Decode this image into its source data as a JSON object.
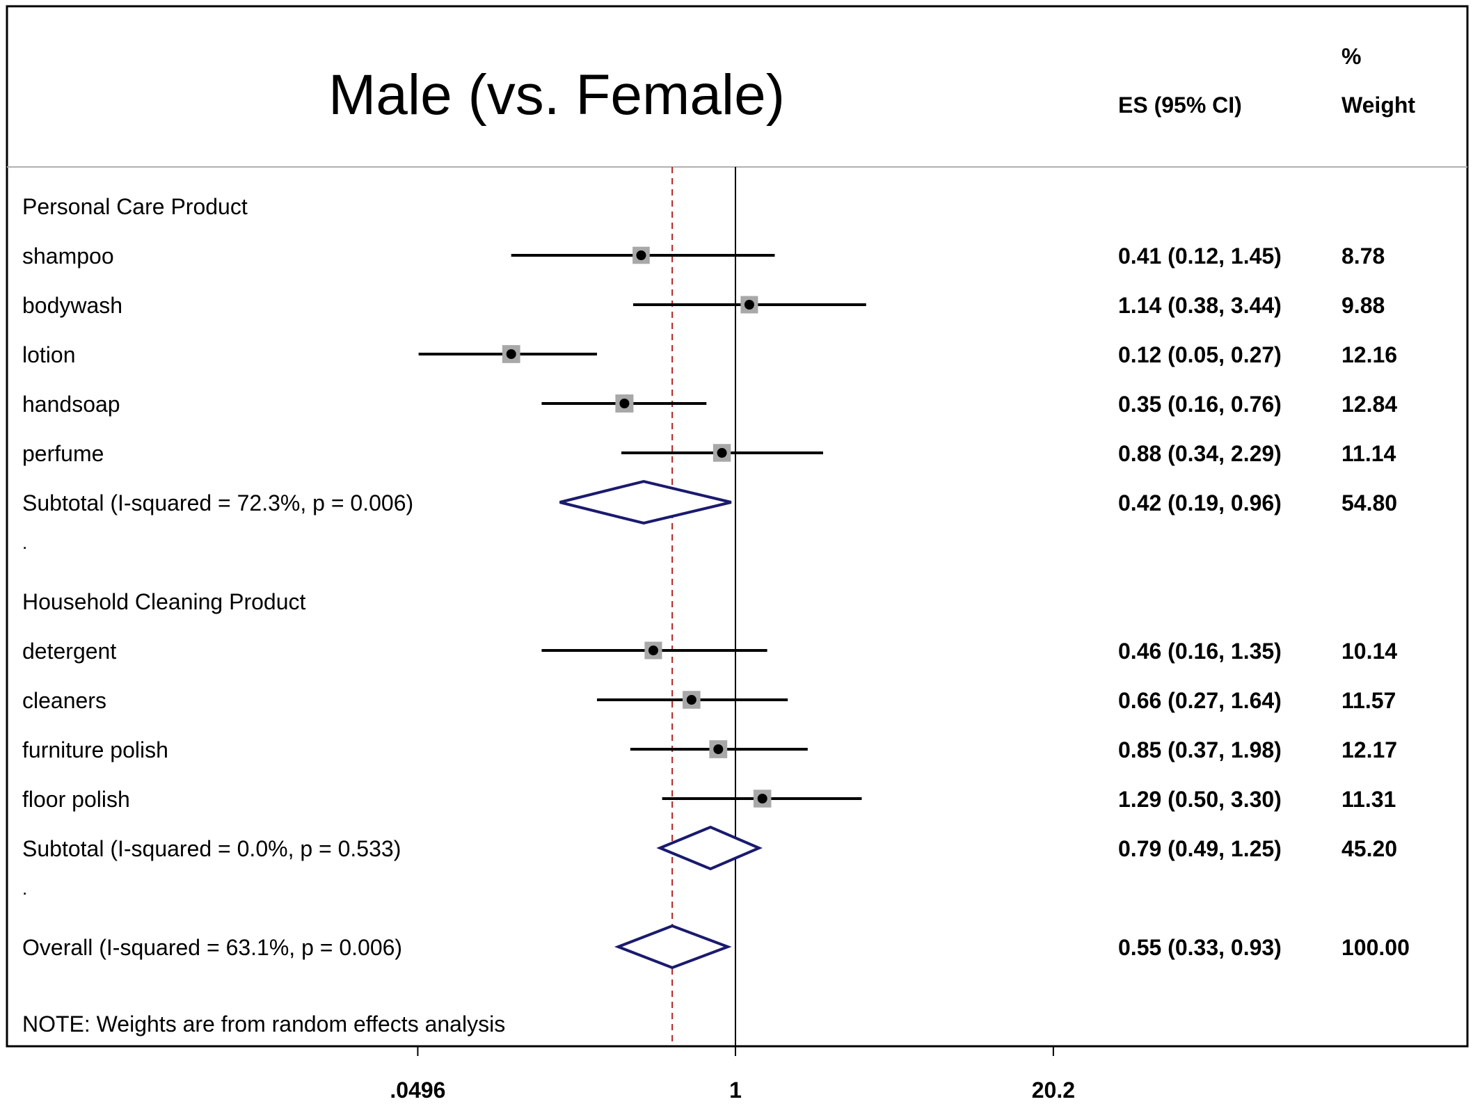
{
  "chart_data": {
    "type": "forest",
    "title": "Male (vs. Female)",
    "column_headers": {
      "es": "ES (95% CI)",
      "weight_top": "%",
      "weight_bottom": "Weight"
    },
    "x_scale": "log",
    "x_ticks": [
      {
        "value": 0.0496,
        "label": ".0496"
      },
      {
        "value": 1,
        "label": "1"
      },
      {
        "value": 20.2,
        "label": "20.2"
      }
    ],
    "null_line": 1,
    "overall_line": 0.55,
    "rows": [
      {
        "kind": "group",
        "label": "Personal Care Product"
      },
      {
        "kind": "study",
        "label": "shampoo",
        "es": 0.41,
        "lo": 0.12,
        "hi": 1.45,
        "es_text": "0.41 (0.12, 1.45)",
        "weight": 8.78,
        "weight_text": "8.78"
      },
      {
        "kind": "study",
        "label": "bodywash",
        "es": 1.14,
        "lo": 0.38,
        "hi": 3.44,
        "es_text": "1.14 (0.38, 3.44)",
        "weight": 9.88,
        "weight_text": "9.88"
      },
      {
        "kind": "study",
        "label": "lotion",
        "es": 0.12,
        "lo": 0.05,
        "hi": 0.27,
        "es_text": "0.12 (0.05, 0.27)",
        "weight": 12.16,
        "weight_text": "12.16"
      },
      {
        "kind": "study",
        "label": "handsoap",
        "es": 0.35,
        "lo": 0.16,
        "hi": 0.76,
        "es_text": "0.35 (0.16, 0.76)",
        "weight": 12.84,
        "weight_text": "12.84"
      },
      {
        "kind": "study",
        "label": "perfume",
        "es": 0.88,
        "lo": 0.34,
        "hi": 2.29,
        "es_text": "0.88 (0.34, 2.29)",
        "weight": 11.14,
        "weight_text": "11.14"
      },
      {
        "kind": "subtotal",
        "label": "Subtotal  (I-squared = 72.3%, p = 0.006)",
        "es": 0.42,
        "lo": 0.19,
        "hi": 0.96,
        "es_text": "0.42 (0.19, 0.96)",
        "weight": 54.8,
        "weight_text": "54.80"
      },
      {
        "kind": "spacer",
        "label": "."
      },
      {
        "kind": "group",
        "label": "Household Cleaning Product"
      },
      {
        "kind": "study",
        "label": "detergent",
        "es": 0.46,
        "lo": 0.16,
        "hi": 1.35,
        "es_text": "0.46 (0.16, 1.35)",
        "weight": 10.14,
        "weight_text": "10.14"
      },
      {
        "kind": "study",
        "label": "cleaners",
        "es": 0.66,
        "lo": 0.27,
        "hi": 1.64,
        "es_text": "0.66 (0.27, 1.64)",
        "weight": 11.57,
        "weight_text": "11.57"
      },
      {
        "kind": "study",
        "label": "furniture polish",
        "es": 0.85,
        "lo": 0.37,
        "hi": 1.98,
        "es_text": "0.85 (0.37, 1.98)",
        "weight": 12.17,
        "weight_text": "12.17"
      },
      {
        "kind": "study",
        "label": "floor polish",
        "es": 1.29,
        "lo": 0.5,
        "hi": 3.3,
        "es_text": "1.29 (0.50, 3.30)",
        "weight": 11.31,
        "weight_text": "11.31"
      },
      {
        "kind": "subtotal",
        "label": "Subtotal  (I-squared = 0.0%, p = 0.533)",
        "es": 0.79,
        "lo": 0.49,
        "hi": 1.25,
        "es_text": "0.79 (0.49, 1.25)",
        "weight": 45.2,
        "weight_text": "45.20"
      },
      {
        "kind": "spacer",
        "label": "."
      },
      {
        "kind": "overall",
        "label": "Overall  (I-squared = 63.1%, p = 0.006)",
        "es": 0.55,
        "lo": 0.33,
        "hi": 0.93,
        "es_text": "0.55 (0.33, 0.93)",
        "weight": 100.0,
        "weight_text": "100.00"
      }
    ],
    "note": "NOTE: Weights are from random effects analysis",
    "colors": {
      "diamond": "#1a1a6e",
      "reference_line": "#b22222",
      "marker_box": "#a8a8a8"
    }
  }
}
